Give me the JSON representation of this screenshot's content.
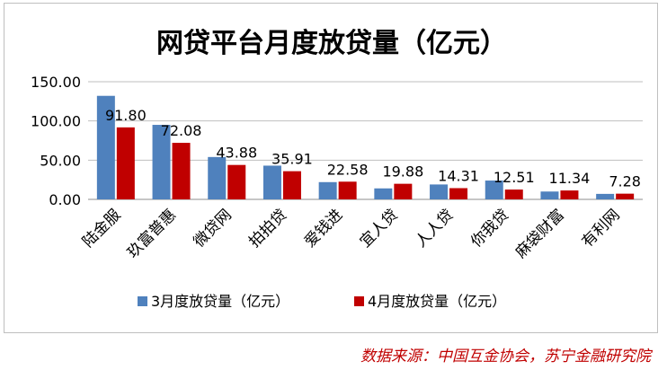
{
  "chart_data": {
    "type": "bar",
    "title": "网贷平台月度放贷量（亿元）",
    "categories": [
      "陆金服",
      "玖富普惠",
      "微贷网",
      "拍拍贷",
      "爱钱进",
      "宜人贷",
      "人人贷",
      "你我贷",
      "麻袋财富",
      "有利网"
    ],
    "series": [
      {
        "name": "3月度放贷量（亿元）",
        "color": "#4f81bd",
        "values": [
          132,
          95,
          54,
          43,
          22,
          14,
          19,
          24,
          10,
          7
        ]
      },
      {
        "name": "4月度放贷量（亿元）",
        "color": "#c00000",
        "values": [
          91.8,
          72.08,
          43.88,
          35.91,
          22.58,
          19.88,
          14.31,
          12.51,
          11.34,
          7.28
        ],
        "labels": [
          "91.80",
          "72.08",
          "43.88",
          "35.91",
          "22.58",
          "19.88",
          "14.31",
          "12.51",
          "11.34",
          "7.28"
        ]
      }
    ],
    "ylim": [
      0,
      150
    ],
    "yticks": [
      "0.00",
      "50.00",
      "100.00",
      "150.00"
    ],
    "grid": true,
    "legend_position": "bottom"
  },
  "source_note": "数据来源：中国互金协会，苏宁金融研究院"
}
